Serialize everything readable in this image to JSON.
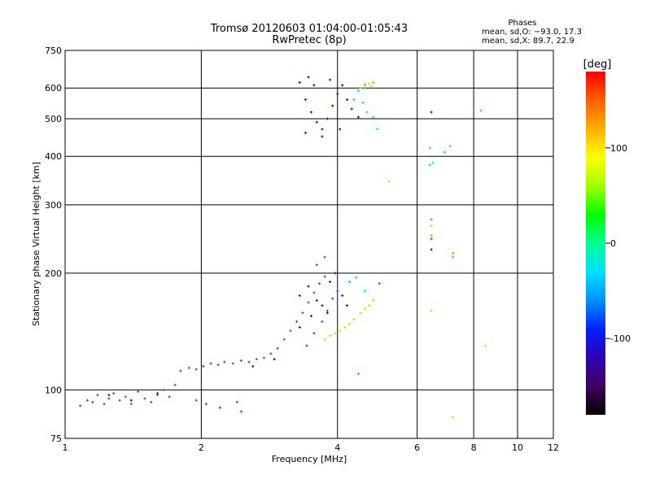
{
  "chart_data": {
    "type": "scatter",
    "title": "Tromsø 20120603 01:04:00-01:05:43",
    "subtitle": "RwPretec (8p)",
    "xlabel": "Frequency [MHz]",
    "ylabel": "Stationary phase Virtual Height [km]",
    "x_scale": "log",
    "y_scale": "log",
    "xlim": [
      1,
      12
    ],
    "ylim": [
      75,
      750
    ],
    "x_ticks": [
      1,
      2,
      4,
      6,
      8,
      10,
      12
    ],
    "y_ticks": [
      75,
      100,
      200,
      300,
      400,
      500,
      600,
      750
    ],
    "grid": true,
    "phases_box": {
      "title": "Phases",
      "line1": "mean, sd,O: −93.0, 17.3",
      "line2": "mean, sd,X: 89.7, 22.9"
    },
    "colorbar": {
      "label": "[deg]",
      "range": [
        -180,
        180
      ],
      "ticks": [
        100,
        0,
        -100
      ],
      "colors": [
        "#000000",
        "#400060",
        "#3000b0",
        "#0020ff",
        "#0090ff",
        "#00e0ff",
        "#00ff90",
        "#00ff00",
        "#a0ff00",
        "#ffff00",
        "#ffb000",
        "#ff6000",
        "#ff0000"
      ]
    },
    "series": [
      {
        "color": "#2a5cd6",
        "points": [
          [
            1.08,
            91
          ],
          [
            1.12,
            94
          ],
          [
            1.15,
            93
          ],
          [
            1.18,
            97
          ],
          [
            1.22,
            92
          ],
          [
            1.25,
            95
          ],
          [
            1.28,
            98
          ],
          [
            1.32,
            94
          ],
          [
            1.36,
            96
          ],
          [
            1.4,
            92
          ],
          [
            1.45,
            99
          ],
          [
            1.5,
            95
          ],
          [
            1.55,
            93
          ],
          [
            1.6,
            97
          ],
          [
            1.65,
            100
          ],
          [
            1.7,
            96
          ],
          [
            1.75,
            103
          ],
          [
            1.8,
            112
          ],
          [
            1.88,
            114
          ],
          [
            1.95,
            113
          ],
          [
            2.02,
            115
          ],
          [
            2.1,
            117
          ],
          [
            2.18,
            116
          ],
          [
            2.25,
            118
          ],
          [
            2.35,
            117
          ],
          [
            2.45,
            119
          ],
          [
            2.55,
            118
          ],
          [
            2.65,
            120
          ],
          [
            2.75,
            121
          ],
          [
            2.85,
            124
          ],
          [
            2.95,
            128
          ],
          [
            3.05,
            135
          ],
          [
            3.15,
            142
          ],
          [
            3.25,
            150
          ],
          [
            3.35,
            158
          ],
          [
            3.45,
            168
          ],
          [
            3.55,
            178
          ],
          [
            3.65,
            188
          ],
          [
            3.75,
            196
          ],
          [
            3.42,
            130
          ],
          [
            3.55,
            140
          ],
          [
            3.7,
            150
          ],
          [
            3.8,
            160
          ],
          [
            3.9,
            172
          ],
          [
            4.0,
            180
          ],
          [
            3.6,
            210
          ],
          [
            3.75,
            220
          ],
          [
            1.95,
            94
          ],
          [
            2.05,
            92
          ],
          [
            2.2,
            90
          ],
          [
            2.4,
            93
          ]
        ]
      },
      {
        "color": "#2a10b0",
        "points": [
          [
            1.25,
            97
          ],
          [
            1.4,
            94
          ],
          [
            1.6,
            98
          ],
          [
            3.3,
            175
          ],
          [
            3.45,
            185
          ],
          [
            3.6,
            170
          ],
          [
            3.7,
            165
          ],
          [
            3.8,
            158
          ],
          [
            3.3,
            145
          ],
          [
            3.5,
            155
          ],
          [
            3.85,
            190
          ],
          [
            3.95,
            200
          ],
          [
            2.6,
            115
          ],
          [
            2.9,
            120
          ],
          [
            4.1,
            175
          ],
          [
            4.2,
            165
          ],
          [
            6.45,
            520
          ],
          [
            6.45,
            230
          ],
          [
            3.3,
            620
          ],
          [
            3.4,
            560
          ],
          [
            3.5,
            520
          ],
          [
            3.6,
            490
          ],
          [
            3.7,
            470
          ],
          [
            3.8,
            500
          ],
          [
            3.9,
            540
          ],
          [
            4.0,
            580
          ],
          [
            4.1,
            610
          ],
          [
            4.2,
            560
          ],
          [
            3.45,
            640
          ],
          [
            3.7,
            450
          ],
          [
            4.05,
            470
          ],
          [
            4.3,
            530
          ],
          [
            4.45,
            505
          ],
          [
            3.4,
            460
          ],
          [
            3.55,
            610
          ],
          [
            3.85,
            630
          ]
        ]
      },
      {
        "color": "#00d4ff",
        "points": [
          [
            4.35,
            560
          ],
          [
            4.55,
            550
          ],
          [
            4.65,
            520
          ],
          [
            4.8,
            505
          ],
          [
            4.9,
            470
          ],
          [
            6.4,
            420
          ],
          [
            6.4,
            380
          ],
          [
            7.1,
            425
          ],
          [
            8.3,
            525
          ],
          [
            4.45,
            590
          ],
          [
            4.6,
            600
          ],
          [
            4.25,
            190
          ],
          [
            4.4,
            195
          ],
          [
            4.6,
            180
          ],
          [
            4.8,
            170
          ],
          [
            6.9,
            410
          ],
          [
            6.5,
            385
          ],
          [
            7.2,
            220
          ]
        ]
      },
      {
        "color": "#e8d400",
        "points": [
          [
            3.75,
            135
          ],
          [
            3.85,
            138
          ],
          [
            3.95,
            140
          ],
          [
            4.05,
            142
          ],
          [
            4.15,
            145
          ],
          [
            4.25,
            148
          ],
          [
            4.35,
            152
          ],
          [
            4.5,
            158
          ],
          [
            4.6,
            162
          ],
          [
            4.7,
            165
          ],
          [
            4.8,
            170
          ],
          [
            4.5,
            600
          ],
          [
            4.6,
            610
          ],
          [
            4.7,
            615
          ],
          [
            4.75,
            605
          ],
          [
            5.2,
            345
          ],
          [
            6.45,
            160
          ],
          [
            7.2,
            85
          ],
          [
            8.5,
            130
          ],
          [
            6.45,
            265
          ]
        ]
      },
      {
        "color": "#ff8c00",
        "points": [
          [
            4.8,
            620
          ],
          [
            4.6,
            612
          ],
          [
            6.45,
            250
          ],
          [
            7.2,
            225
          ]
        ]
      },
      {
        "color": "#ff2020",
        "points": [
          [
            4.95,
            188
          ],
          [
            2.45,
            88
          ],
          [
            6.45,
            245
          ]
        ]
      },
      {
        "color": "#20d020",
        "points": [
          [
            4.45,
            110
          ],
          [
            6.45,
            275
          ]
        ]
      }
    ]
  }
}
